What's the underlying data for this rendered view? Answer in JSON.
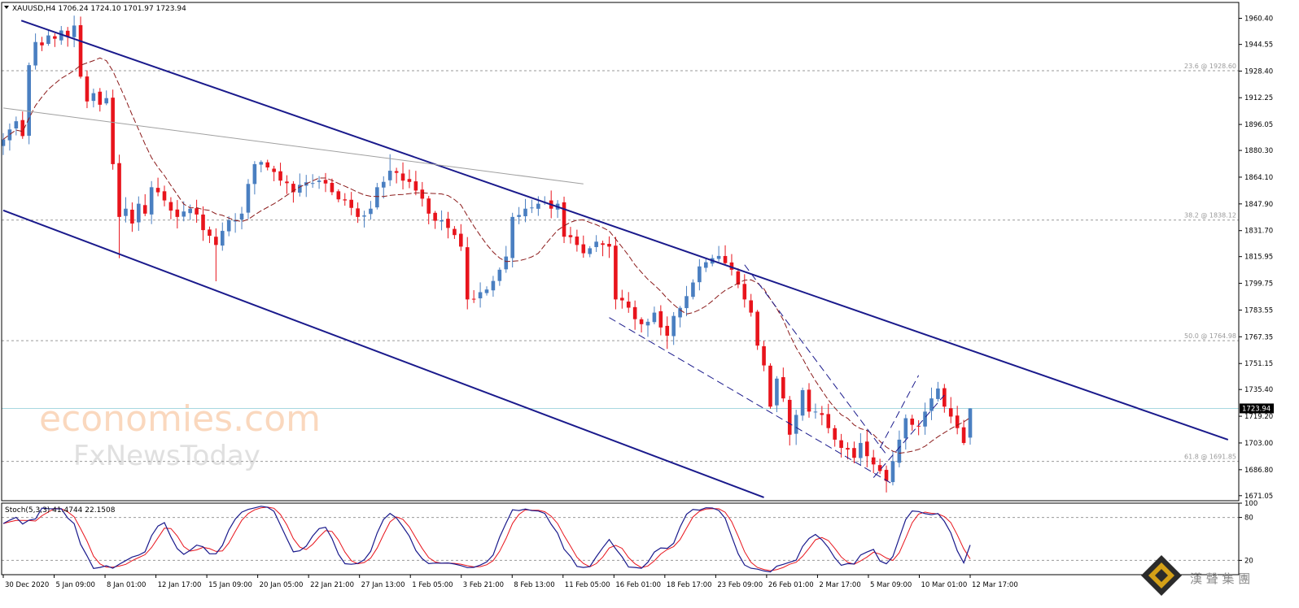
{
  "chart_data": {
    "type": "candlestick",
    "symbol_header": "XAUUSD,H4  1706.24 1724.10 1701.97 1723.94",
    "current_price": 1723.94,
    "current_price_label": "1723.94",
    "y_ticks": [
      "1960.40",
      "1944.55",
      "1928.40",
      "1912.25",
      "1896.05",
      "1880.30",
      "1864.10",
      "1847.90",
      "1831.70",
      "1815.95",
      "1799.75",
      "1783.55",
      "1767.35",
      "1751.15",
      "1735.40",
      "1719.20",
      "1703.00",
      "1686.80",
      "1671.05"
    ],
    "ylim": [
      1668,
      1970
    ],
    "x_ticks": [
      "30 Dec 2020",
      "5 Jan 09:00",
      "8 Jan 01:00",
      "12 Jan 17:00",
      "15 Jan 09:00",
      "20 Jan 05:00",
      "22 Jan 21:00",
      "27 Jan 13:00",
      "1 Feb 05:00",
      "3 Feb 21:00",
      "8 Feb 13:00",
      "11 Feb 05:00",
      "16 Feb 01:00",
      "18 Feb 17:00",
      "23 Feb 09:00",
      "26 Feb 01:00",
      "2 Mar 17:00",
      "5 Mar 09:00",
      "10 Mar 01:00",
      "12 Mar 17:00"
    ],
    "fib_levels": [
      {
        "label": "23.6 @ 1928.60",
        "price": 1928.6
      },
      {
        "label": "38.2 @ 1838.12",
        "price": 1838.12
      },
      {
        "label": "50.0 @ 1764.98",
        "price": 1764.98
      },
      {
        "label": "61.8 @ 1691.85",
        "price": 1691.85
      }
    ],
    "trend_lines": [
      {
        "name": "channel-upper",
        "color": "#1a1a8c",
        "from": [
          2.8,
          1959
        ],
        "to": [
          190,
          1705
        ]
      },
      {
        "name": "channel-lower",
        "color": "#1a1a8c",
        "from": [
          0,
          1844
        ],
        "to": [
          118,
          1670
        ]
      },
      {
        "name": "grey-resistance",
        "color": "#a0a0a0",
        "from": [
          0,
          1906
        ],
        "to": [
          90,
          1860
        ]
      },
      {
        "name": "wedge-lower",
        "color": "#1a1a8c",
        "dashed": true,
        "from": [
          94,
          1779
        ],
        "to": [
          138,
          1678
        ]
      },
      {
        "name": "wedge-upper",
        "color": "#1a1a8c",
        "dashed": true,
        "from": [
          115,
          1811
        ],
        "to": [
          137,
          1696
        ]
      },
      {
        "name": "flag-lower",
        "color": "#1a1a8c",
        "dashed": true,
        "from": [
          135,
          1682
        ],
        "to": [
          146,
          1732
        ]
      },
      {
        "name": "flag-upper",
        "color": "#1a1a8c",
        "dashed": true,
        "from": [
          136,
          1700
        ],
        "to": [
          142,
          1744
        ]
      }
    ],
    "candle_anchors": [
      [
        0,
        1887
      ],
      [
        1,
        1893
      ],
      [
        2,
        1898
      ],
      [
        3,
        1889
      ],
      [
        4,
        1932
      ],
      [
        5,
        1946
      ],
      [
        6,
        1944
      ],
      [
        7,
        1950
      ],
      [
        8,
        1948
      ],
      [
        9,
        1953
      ],
      [
        10,
        1949
      ],
      [
        11,
        1956
      ],
      [
        12,
        1925
      ],
      [
        13,
        1910
      ],
      [
        14,
        1915
      ],
      [
        15,
        1908
      ],
      [
        16,
        1912
      ],
      [
        17,
        1872
      ],
      [
        18,
        1840
      ],
      [
        19,
        1845
      ],
      [
        20,
        1836
      ],
      [
        21,
        1848
      ],
      [
        22,
        1842
      ],
      [
        23,
        1858
      ],
      [
        25,
        1850
      ],
      [
        27,
        1840
      ],
      [
        29,
        1845
      ],
      [
        31,
        1832
      ],
      [
        33,
        1823
      ],
      [
        35,
        1838
      ],
      [
        37,
        1842
      ],
      [
        38,
        1860
      ],
      [
        39,
        1872
      ],
      [
        41,
        1870
      ],
      [
        43,
        1862
      ],
      [
        45,
        1855
      ],
      [
        47,
        1861
      ],
      [
        49,
        1862
      ],
      [
        51,
        1855
      ],
      [
        53,
        1850
      ],
      [
        55,
        1840
      ],
      [
        57,
        1845
      ],
      [
        58,
        1858
      ],
      [
        60,
        1868
      ],
      [
        62,
        1862
      ],
      [
        64,
        1856
      ],
      [
        66,
        1842
      ],
      [
        68,
        1838
      ],
      [
        70,
        1829
      ],
      [
        71,
        1822
      ],
      [
        72,
        1790
      ],
      [
        73,
        1790
      ],
      [
        75,
        1796
      ],
      [
        77,
        1808
      ],
      [
        78,
        1816
      ],
      [
        79,
        1840
      ],
      [
        81,
        1845
      ],
      [
        83,
        1848
      ],
      [
        85,
        1845
      ],
      [
        86,
        1848
      ],
      [
        87,
        1828
      ],
      [
        89,
        1823
      ],
      [
        90,
        1818
      ],
      [
        92,
        1825
      ],
      [
        94,
        1822
      ],
      [
        95,
        1790
      ],
      [
        97,
        1785
      ],
      [
        99,
        1775
      ],
      [
        101,
        1782
      ],
      [
        102,
        1773
      ],
      [
        103,
        1768
      ],
      [
        104,
        1780
      ],
      [
        106,
        1792
      ],
      [
        108,
        1810
      ],
      [
        110,
        1815
      ],
      [
        112,
        1812
      ],
      [
        113,
        1808
      ],
      [
        114,
        1799
      ],
      [
        115,
        1790
      ],
      [
        116,
        1782
      ],
      [
        117,
        1762
      ],
      [
        118,
        1750
      ],
      [
        119,
        1725
      ],
      [
        120,
        1742
      ],
      [
        121,
        1730
      ],
      [
        122,
        1708
      ],
      [
        123,
        1720
      ],
      [
        124,
        1735
      ],
      [
        125,
        1722
      ],
      [
        126,
        1722
      ],
      [
        127,
        1720
      ],
      [
        128,
        1712
      ],
      [
        129,
        1705
      ],
      [
        130,
        1700
      ],
      [
        131,
        1699
      ],
      [
        132,
        1694
      ],
      [
        133,
        1703
      ],
      [
        134,
        1695
      ],
      [
        135,
        1690
      ],
      [
        136,
        1686
      ],
      [
        137,
        1680
      ],
      [
        138,
        1692
      ],
      [
        139,
        1705
      ],
      [
        140,
        1718
      ],
      [
        141,
        1714
      ],
      [
        142,
        1713
      ],
      [
        143,
        1722
      ],
      [
        144,
        1730
      ],
      [
        145,
        1736
      ],
      [
        146,
        1725
      ],
      [
        147,
        1719
      ],
      [
        148,
        1712
      ],
      [
        149,
        1703
      ],
      [
        150,
        1723.94
      ]
    ],
    "ma": {
      "name": "",
      "color": "#8b1a1a"
    },
    "stochastic": {
      "label": "Stoch(5,3,3) 41.4744 22.1508",
      "y_ticks": [
        "100",
        "80",
        "20"
      ],
      "levels": [
        80,
        20
      ],
      "range": [
        0,
        100
      ]
    }
  },
  "watermark": {
    "line1": "economies.com",
    "line2": "FxNewsToday"
  },
  "corner_logo": {
    "text": "漢 聲 集 團"
  }
}
